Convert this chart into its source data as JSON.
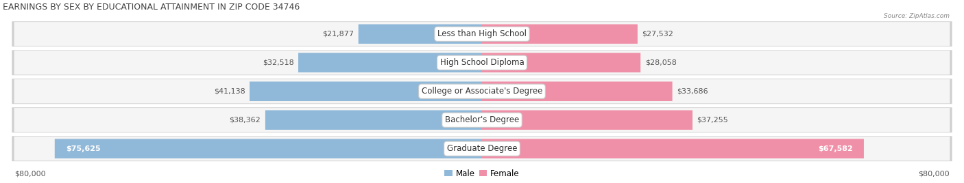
{
  "title": "EARNINGS BY SEX BY EDUCATIONAL ATTAINMENT IN ZIP CODE 34746",
  "source": "Source: ZipAtlas.com",
  "categories": [
    "Less than High School",
    "High School Diploma",
    "College or Associate's Degree",
    "Bachelor's Degree",
    "Graduate Degree"
  ],
  "male_values": [
    21877,
    32518,
    41138,
    38362,
    75625
  ],
  "female_values": [
    27532,
    28058,
    33686,
    37255,
    67582
  ],
  "max_value": 80000,
  "male_color": "#90b8d8",
  "female_color": "#f090a8",
  "male_color_grad": "#6a9ec8",
  "female_color_grad": "#e8607a",
  "row_bg_color": "#e8e8e8",
  "row_inner_color": "#f2f2f2",
  "title_fontsize": 9.0,
  "label_fontsize": 8.5,
  "value_fontsize": 8.0,
  "tick_fontsize": 8.0,
  "x_label_left": "$80,000",
  "x_label_right": "$80,000",
  "legend_male": "Male",
  "legend_female": "Female"
}
